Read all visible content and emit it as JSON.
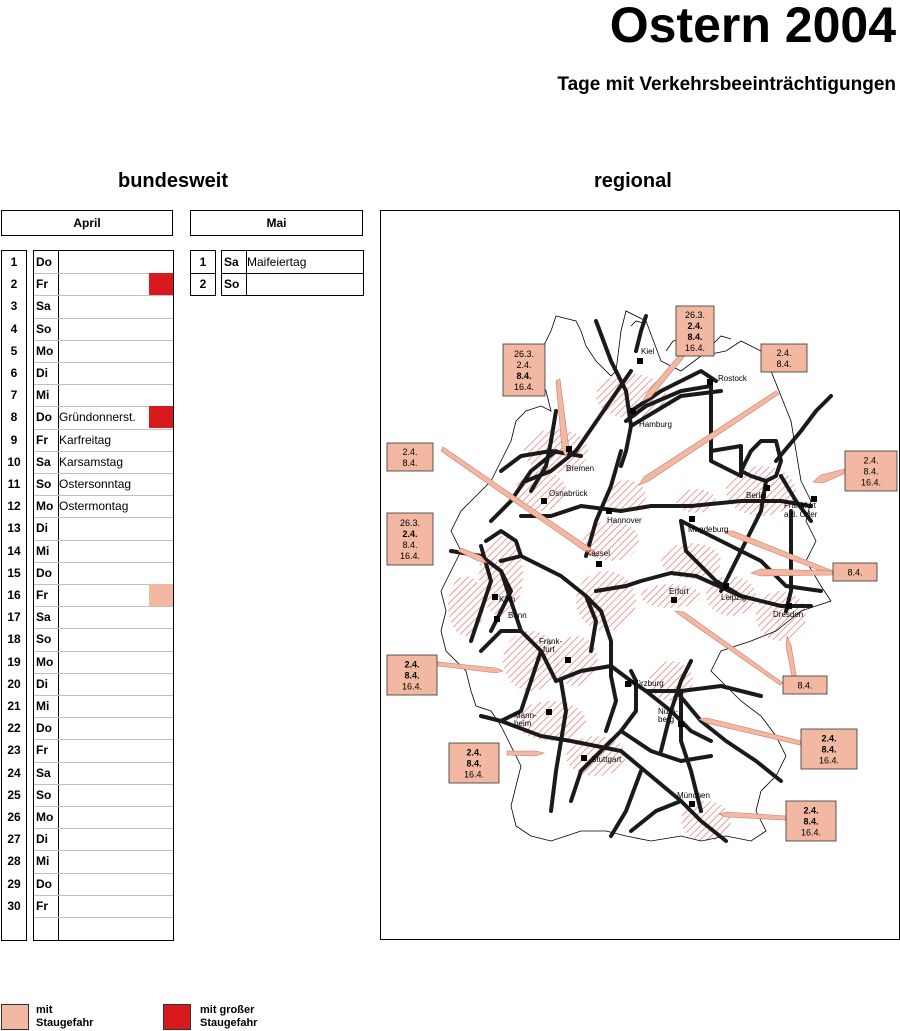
{
  "title": "Ostern 2004",
  "subtitle": "Tage mit Verkehrsbeeinträchtigungen",
  "bundesweit": "bundesweit",
  "regional": "regional",
  "colors": {
    "staugefahr": "#f2b8a2",
    "grosse_staugefahr": "#d8191e",
    "hatch": "#e07070"
  },
  "april": {
    "label": "April",
    "days": [
      {
        "n": "1",
        "wd": "Do",
        "name": "",
        "level": ""
      },
      {
        "n": "2",
        "wd": "Fr",
        "name": "",
        "level": "high"
      },
      {
        "n": "3",
        "wd": "Sa",
        "name": "",
        "level": ""
      },
      {
        "n": "4",
        "wd": "So",
        "name": "",
        "level": ""
      },
      {
        "n": "5",
        "wd": "Mo",
        "name": "",
        "level": ""
      },
      {
        "n": "6",
        "wd": "Di",
        "name": "",
        "level": ""
      },
      {
        "n": "7",
        "wd": "Mi",
        "name": "",
        "level": ""
      },
      {
        "n": "8",
        "wd": "Do",
        "name": "Gründonnerst.",
        "level": "high"
      },
      {
        "n": "9",
        "wd": "Fr",
        "name": "Karfreitag",
        "level": ""
      },
      {
        "n": "10",
        "wd": "Sa",
        "name": "Karsamstag",
        "level": ""
      },
      {
        "n": "11",
        "wd": "So",
        "name": "Ostersonntag",
        "level": ""
      },
      {
        "n": "12",
        "wd": "Mo",
        "name": "Ostermontag",
        "level": ""
      },
      {
        "n": "13",
        "wd": "Di",
        "name": "",
        "level": ""
      },
      {
        "n": "14",
        "wd": "Mi",
        "name": "",
        "level": ""
      },
      {
        "n": "15",
        "wd": "Do",
        "name": "",
        "level": ""
      },
      {
        "n": "16",
        "wd": "Fr",
        "name": "",
        "level": "low"
      },
      {
        "n": "17",
        "wd": "Sa",
        "name": "",
        "level": ""
      },
      {
        "n": "18",
        "wd": "So",
        "name": "",
        "level": ""
      },
      {
        "n": "19",
        "wd": "Mo",
        "name": "",
        "level": ""
      },
      {
        "n": "20",
        "wd": "Di",
        "name": "",
        "level": ""
      },
      {
        "n": "21",
        "wd": "Mi",
        "name": "",
        "level": ""
      },
      {
        "n": "22",
        "wd": "Do",
        "name": "",
        "level": ""
      },
      {
        "n": "23",
        "wd": "Fr",
        "name": "",
        "level": ""
      },
      {
        "n": "24",
        "wd": "Sa",
        "name": "",
        "level": ""
      },
      {
        "n": "25",
        "wd": "So",
        "name": "",
        "level": ""
      },
      {
        "n": "26",
        "wd": "Mo",
        "name": "",
        "level": ""
      },
      {
        "n": "27",
        "wd": "Di",
        "name": "",
        "level": ""
      },
      {
        "n": "28",
        "wd": "Mi",
        "name": "",
        "level": ""
      },
      {
        "n": "29",
        "wd": "Do",
        "name": "",
        "level": ""
      },
      {
        "n": "30",
        "wd": "Fr",
        "name": "",
        "level": ""
      }
    ]
  },
  "mai": {
    "label": "Mai",
    "days": [
      {
        "n": "1",
        "wd": "Sa",
        "name": "Maifeiertag",
        "level": ""
      },
      {
        "n": "2",
        "wd": "So",
        "name": "",
        "level": ""
      }
    ]
  },
  "legend": [
    {
      "line1": "mit",
      "line2": "Staugefahr",
      "level": "low"
    },
    {
      "line1": "mit großer",
      "line2": "Staugefahr",
      "level": "high"
    }
  ],
  "cities": [
    "Kiel",
    "Rostock",
    "Hamburg",
    "Bremen",
    "Osnabrück",
    "Hannover",
    "Berlin",
    "Frankfurt",
    "a.d. Oder",
    "Magdeburg",
    "Kassel",
    "Köln",
    "Bonn",
    "Erfurt",
    "Leipzig",
    "Dresden",
    "Frank-",
    "furt",
    "Würzburg",
    "Nürn-",
    "berg",
    "Mann-",
    "heim",
    "Stuttgart",
    "München"
  ],
  "callouts": [
    {
      "id": "c1",
      "lines": [
        {
          "t": "26.3.",
          "b": false
        },
        {
          "t": "2.4.",
          "b": true
        },
        {
          "t": "8.4.",
          "b": true
        },
        {
          "t": "16.4.",
          "b": false
        }
      ]
    },
    {
      "id": "c2",
      "lines": [
        {
          "t": "26.3.",
          "b": false
        },
        {
          "t": "2.4.",
          "b": false
        },
        {
          "t": "8.4.",
          "b": true
        },
        {
          "t": "16.4.",
          "b": false
        }
      ]
    },
    {
      "id": "c3",
      "lines": [
        {
          "t": "2.4.",
          "b": false
        },
        {
          "t": "8.4.",
          "b": false
        }
      ]
    },
    {
      "id": "c4",
      "lines": [
        {
          "t": "2.4.",
          "b": false
        },
        {
          "t": "8.4.",
          "b": false
        }
      ]
    },
    {
      "id": "c5",
      "lines": [
        {
          "t": "2.4.",
          "b": false
        },
        {
          "t": "8.4.",
          "b": false
        },
        {
          "t": "16.4.",
          "b": false
        }
      ]
    },
    {
      "id": "c6",
      "lines": [
        {
          "t": "26.3.",
          "b": false
        },
        {
          "t": "2.4.",
          "b": true
        },
        {
          "t": "8.4.",
          "b": false
        },
        {
          "t": "16.4.",
          "b": false
        }
      ]
    },
    {
      "id": "c7",
      "lines": [
        {
          "t": "8.4.",
          "b": false
        }
      ]
    },
    {
      "id": "c8",
      "lines": [
        {
          "t": "2.4.",
          "b": true
        },
        {
          "t": "8.4.",
          "b": true
        },
        {
          "t": "16.4.",
          "b": false
        }
      ]
    },
    {
      "id": "c9",
      "lines": [
        {
          "t": "8.4.",
          "b": false
        }
      ]
    },
    {
      "id": "c10",
      "lines": [
        {
          "t": "2.4.",
          "b": true
        },
        {
          "t": "8.4.",
          "b": true
        },
        {
          "t": "16.4.",
          "b": false
        }
      ]
    },
    {
      "id": "c11",
      "lines": [
        {
          "t": "2.4.",
          "b": true
        },
        {
          "t": "8.4.",
          "b": true
        },
        {
          "t": "16.4.",
          "b": false
        }
      ]
    },
    {
      "id": "c12",
      "lines": [
        {
          "t": "2.4.",
          "b": true
        },
        {
          "t": "8.4.",
          "b": true
        },
        {
          "t": "16.4.",
          "b": false
        }
      ]
    }
  ]
}
